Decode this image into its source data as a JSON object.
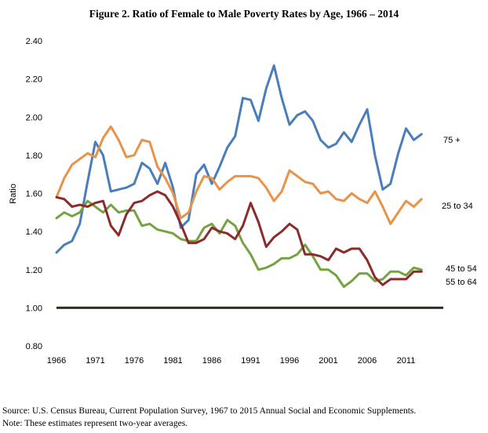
{
  "chart_data": {
    "type": "line",
    "title": "Figure 2. Ratio of Female to Male Poverty Rates by Age, 1966 – 2014",
    "ylabel": "Ratio",
    "xlabel": "",
    "xlim": [
      1966,
      2014
    ],
    "ylim": [
      0.8,
      2.4
    ],
    "yticks": [
      "0.80",
      "1.00",
      "1.20",
      "1.40",
      "1.60",
      "1.80",
      "2.00",
      "2.20",
      "2.40"
    ],
    "xticks": [
      "1966",
      "1971",
      "1976",
      "1981",
      "1986",
      "1991",
      "1996",
      "2001",
      "2006",
      "2011"
    ],
    "grid": false,
    "legend": "inline-right",
    "baseline": 1.0,
    "x": [
      1966,
      1967,
      1968,
      1969,
      1970,
      1971,
      1972,
      1973,
      1974,
      1975,
      1976,
      1977,
      1978,
      1979,
      1980,
      1981,
      1982,
      1983,
      1984,
      1985,
      1986,
      1987,
      1988,
      1989,
      1990,
      1991,
      1992,
      1993,
      1994,
      1995,
      1996,
      1997,
      1998,
      1999,
      2000,
      2001,
      2002,
      2003,
      2004,
      2005,
      2006,
      2007,
      2008,
      2009,
      2010,
      2011,
      2012,
      2013
    ],
    "series": [
      {
        "name": "75 +",
        "color": "#4a7ebb",
        "values": [
          1.29,
          1.33,
          1.35,
          1.44,
          1.66,
          1.87,
          1.8,
          1.61,
          1.62,
          1.63,
          1.65,
          1.76,
          1.73,
          1.65,
          1.76,
          1.63,
          1.42,
          1.46,
          1.7,
          1.75,
          1.65,
          1.74,
          1.84,
          1.9,
          2.1,
          2.09,
          1.98,
          2.15,
          2.27,
          2.1,
          1.96,
          2.01,
          2.03,
          1.98,
          1.88,
          1.84,
          1.86,
          1.92,
          1.87,
          1.96,
          2.04,
          1.8,
          1.62,
          1.65,
          1.81,
          1.94,
          1.88,
          1.91
        ]
      },
      {
        "name": "25 to 34",
        "color": "#e8924a",
        "values": [
          1.58,
          1.68,
          1.75,
          1.78,
          1.81,
          1.79,
          1.89,
          1.95,
          1.88,
          1.79,
          1.8,
          1.88,
          1.87,
          1.74,
          1.68,
          1.6,
          1.47,
          1.5,
          1.61,
          1.69,
          1.68,
          1.62,
          1.66,
          1.69,
          1.69,
          1.69,
          1.68,
          1.63,
          1.56,
          1.61,
          1.72,
          1.69,
          1.66,
          1.65,
          1.6,
          1.61,
          1.57,
          1.56,
          1.6,
          1.57,
          1.55,
          1.61,
          1.53,
          1.44,
          1.5,
          1.56,
          1.53,
          1.57
        ]
      },
      {
        "name": "45 to 54",
        "color": "#76a240",
        "values": [
          1.47,
          1.5,
          1.48,
          1.5,
          1.56,
          1.53,
          1.5,
          1.54,
          1.5,
          1.51,
          1.51,
          1.43,
          1.44,
          1.41,
          1.4,
          1.39,
          1.36,
          1.35,
          1.35,
          1.42,
          1.44,
          1.39,
          1.46,
          1.43,
          1.34,
          1.28,
          1.2,
          1.21,
          1.23,
          1.26,
          1.26,
          1.28,
          1.33,
          1.27,
          1.2,
          1.2,
          1.17,
          1.11,
          1.14,
          1.18,
          1.18,
          1.14,
          1.15,
          1.19,
          1.19,
          1.17,
          1.21,
          1.2
        ]
      },
      {
        "name": "55 to 64",
        "color": "#8b2c2c",
        "values": [
          1.58,
          1.57,
          1.53,
          1.54,
          1.53,
          1.55,
          1.56,
          1.43,
          1.38,
          1.49,
          1.55,
          1.56,
          1.59,
          1.61,
          1.59,
          1.53,
          1.44,
          1.34,
          1.34,
          1.36,
          1.42,
          1.4,
          1.39,
          1.36,
          1.43,
          1.55,
          1.45,
          1.32,
          1.37,
          1.4,
          1.44,
          1.41,
          1.28,
          1.28,
          1.27,
          1.25,
          1.31,
          1.29,
          1.31,
          1.31,
          1.25,
          1.16,
          1.12,
          1.15,
          1.15,
          1.15,
          1.19,
          1.19
        ]
      }
    ]
  },
  "footnotes": {
    "source": "Source: U.S. Census Bureau, Current Population Survey, 1967 to 2015 Annual Social and Economic Supplements.",
    "note": "Note: These estimates represent two-year averages."
  }
}
